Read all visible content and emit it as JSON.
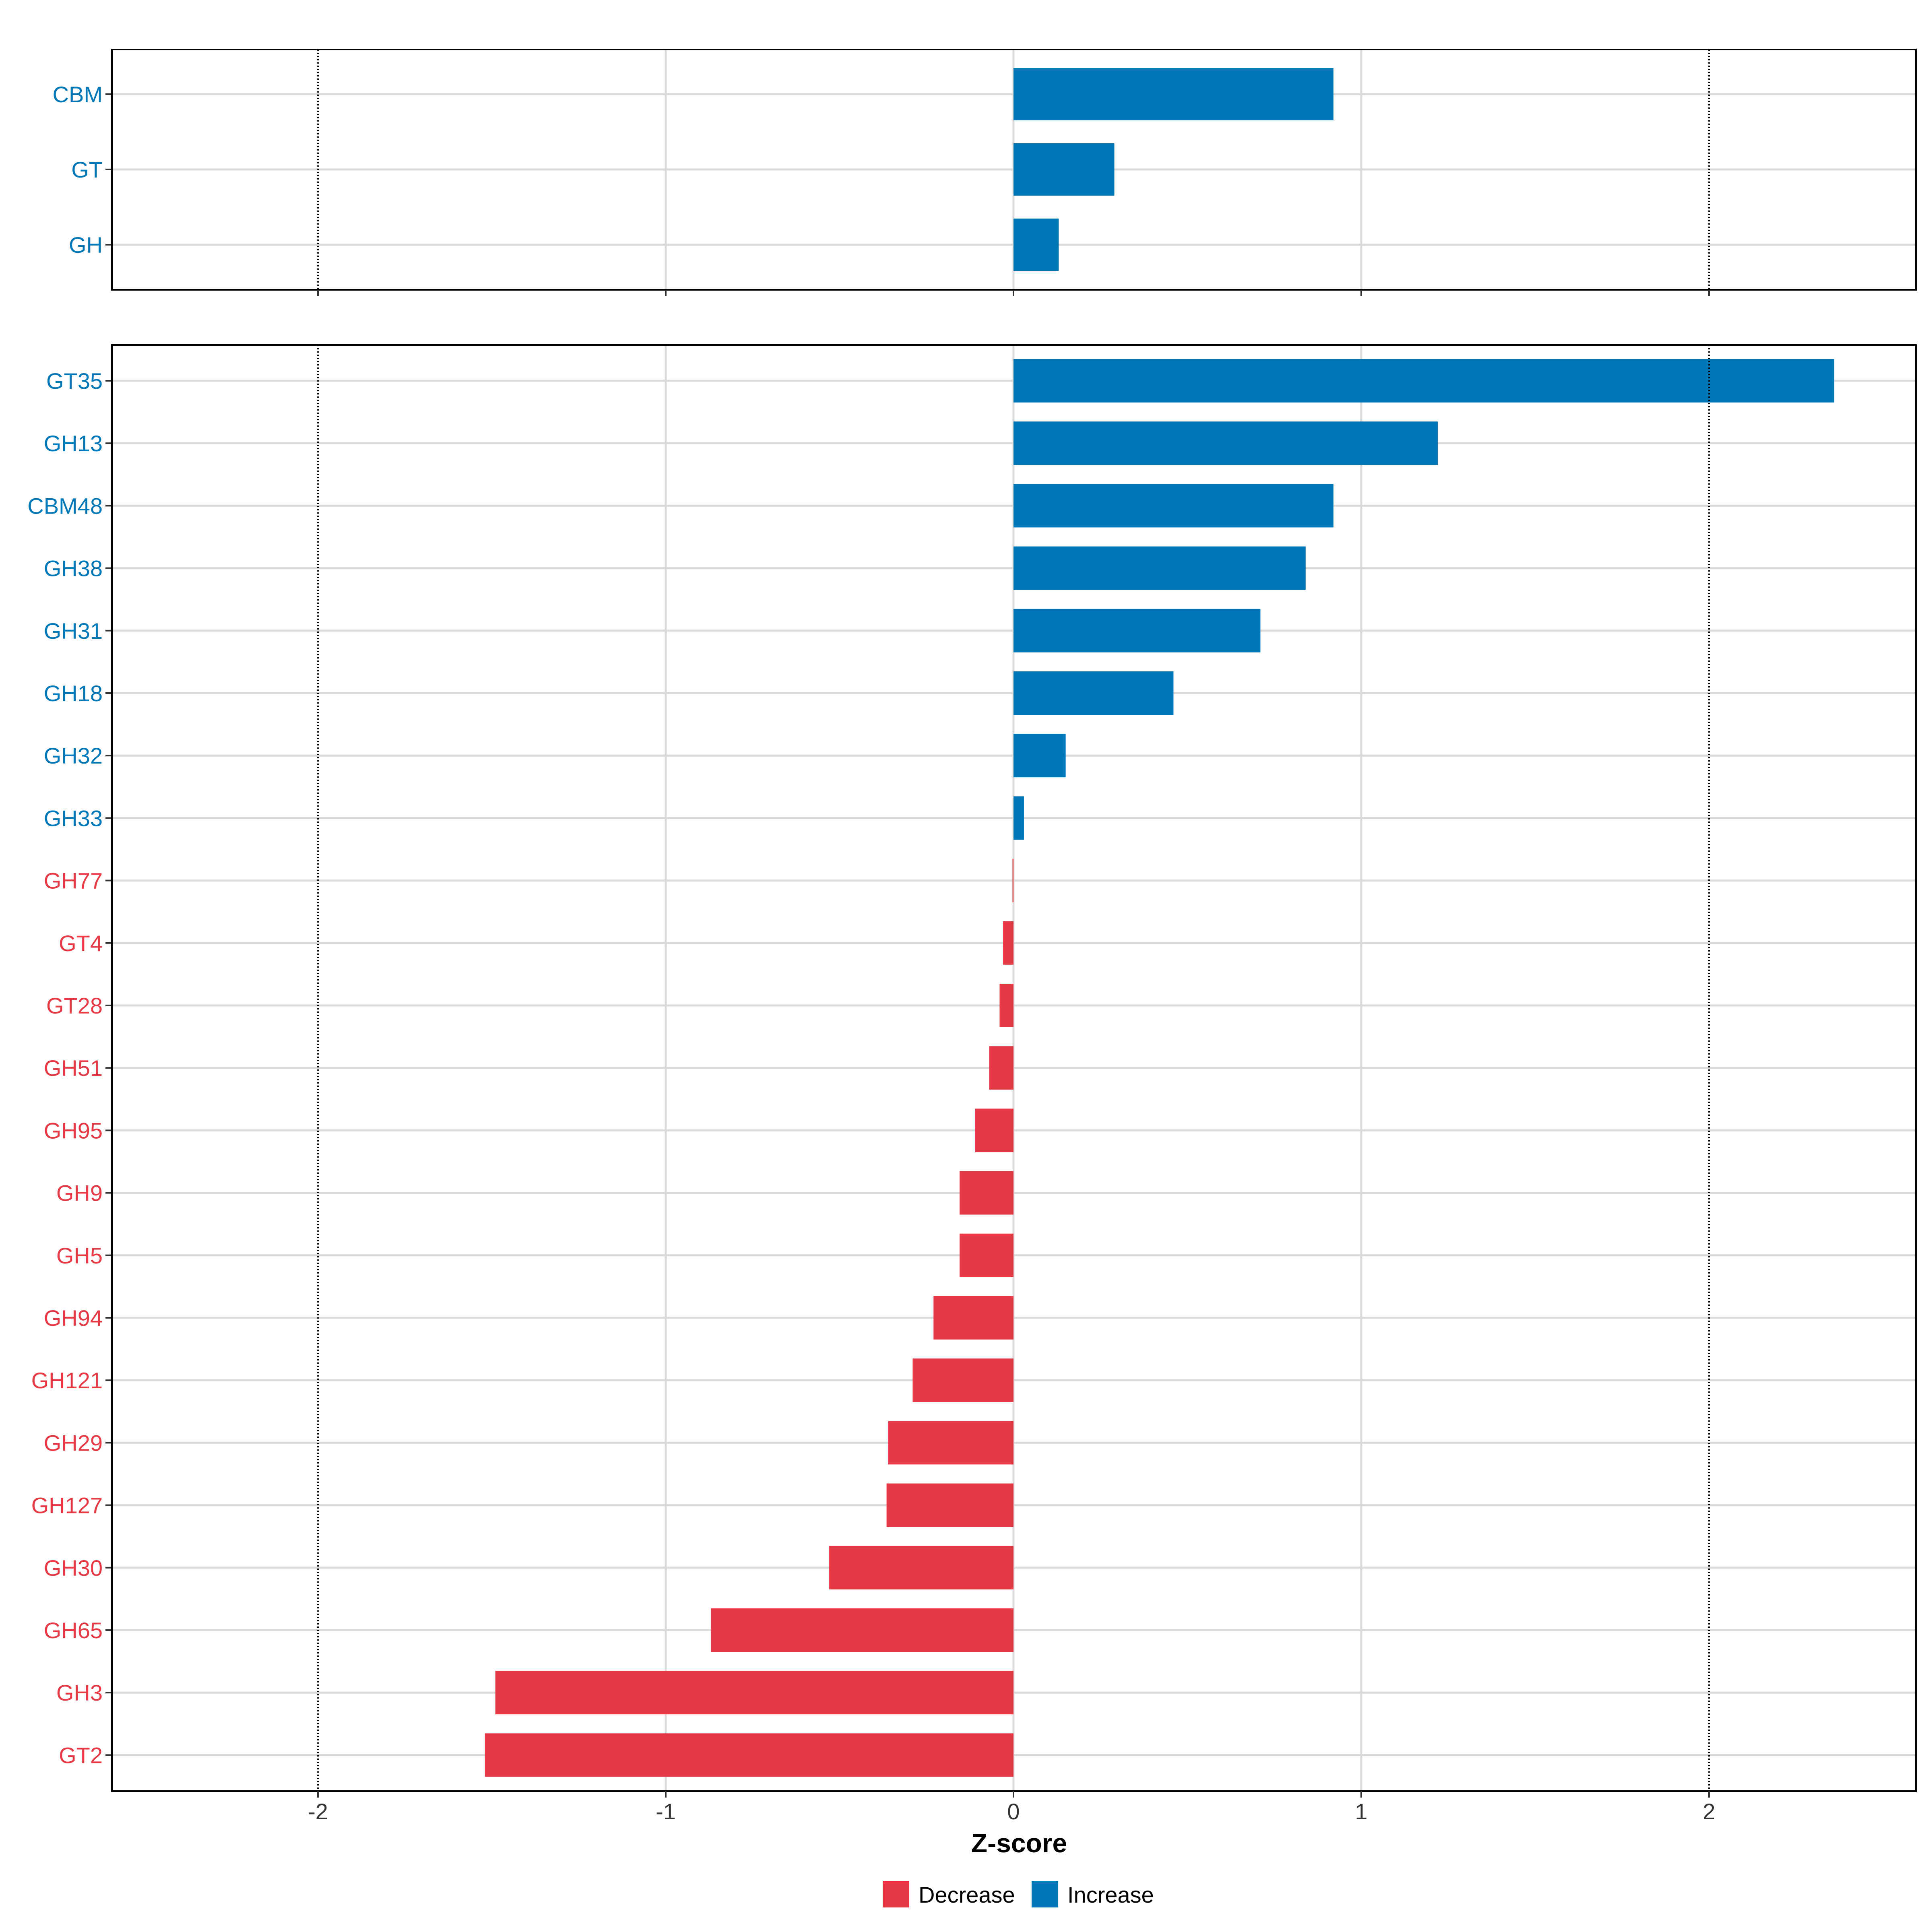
{
  "chart_data": [
    {
      "type": "bar",
      "orientation": "horizontal",
      "panel": "top",
      "categories": [
        "CBM",
        "GT",
        "GH"
      ],
      "values": [
        0.92,
        0.29,
        0.13
      ],
      "xlim": [
        -2.6,
        2.6
      ],
      "reference_lines": [
        -2,
        2
      ],
      "grid": true
    },
    {
      "type": "bar",
      "orientation": "horizontal",
      "panel": "bottom",
      "categories": [
        "GT35",
        "GH13",
        "CBM48",
        "GH38",
        "GH31",
        "GH18",
        "GH32",
        "GH33",
        "GH77",
        "GT4",
        "GT28",
        "GH51",
        "GH95",
        "GH9",
        "GH5",
        "GH94",
        "GH121",
        "GH29",
        "GH127",
        "GH30",
        "GH65",
        "GH3",
        "GT2"
      ],
      "values": [
        2.36,
        1.22,
        0.92,
        0.84,
        0.71,
        0.46,
        0.15,
        0.03,
        -0.003,
        -0.03,
        -0.04,
        -0.07,
        -0.11,
        -0.155,
        -0.155,
        -0.23,
        -0.29,
        -0.36,
        -0.365,
        -0.53,
        -0.87,
        -1.49,
        -1.52
      ],
      "xlim": [
        -2.6,
        2.6
      ],
      "xticks": [
        -2,
        -1,
        0,
        1,
        2
      ],
      "xtick_labels": [
        "-2",
        "-1",
        "0",
        "1",
        "2"
      ],
      "xlabel": "Z-score",
      "reference_lines": [
        -2,
        2
      ],
      "grid": true
    }
  ],
  "legend": {
    "items": [
      {
        "label": "Decrease",
        "color": "#E63946"
      },
      {
        "label": "Increase",
        "color": "#0077B6"
      }
    ],
    "placement": "bottom"
  },
  "colors": {
    "increase": "#0077B6",
    "decrease": "#E63946",
    "grid": "#D9D9D9",
    "frame": "#000000"
  }
}
